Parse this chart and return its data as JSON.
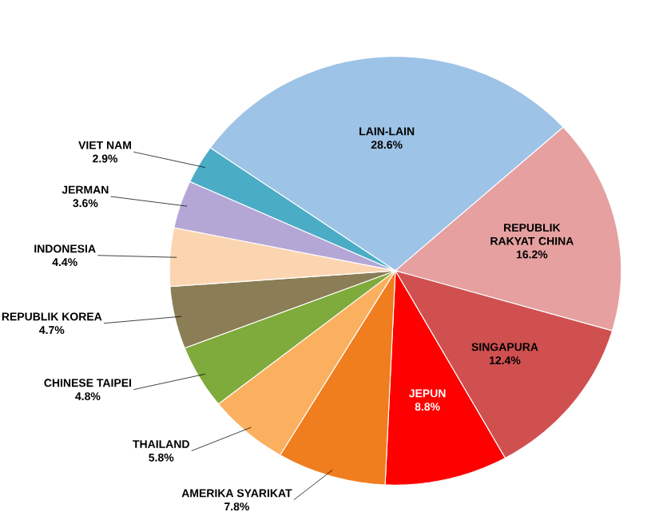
{
  "chart_data": {
    "type": "pie",
    "categories": [
      "LAIN-LAIN",
      "REPUBLIK RAKYAT CHINA",
      "SINGAPURA",
      "JEPUN",
      "AMERIKA SYARIKAT",
      "THAILAND",
      "CHINESE TAIPEI",
      "REPUBLIK KOREA",
      "INDONESIA",
      "JERMAN",
      "VIET NAM"
    ],
    "values": [
      28.6,
      16.2,
      12.4,
      8.8,
      7.8,
      5.8,
      4.8,
      4.7,
      4.4,
      3.6,
      2.9
    ],
    "value_labels": [
      "28.6%",
      "16.2%",
      "12.4%",
      "8.8%",
      "7.8%",
      "5.8%",
      "4.8%",
      "4.7%",
      "4.4%",
      "3.6%",
      "2.9%"
    ],
    "colors": [
      "#9dc3e6",
      "#e6a0a0",
      "#d05050",
      "#ff0000",
      "#f07d1e",
      "#fbb060",
      "#7faa3c",
      "#8b7d55",
      "#fbd5b0",
      "#b4a7d6",
      "#4bacc6"
    ]
  }
}
